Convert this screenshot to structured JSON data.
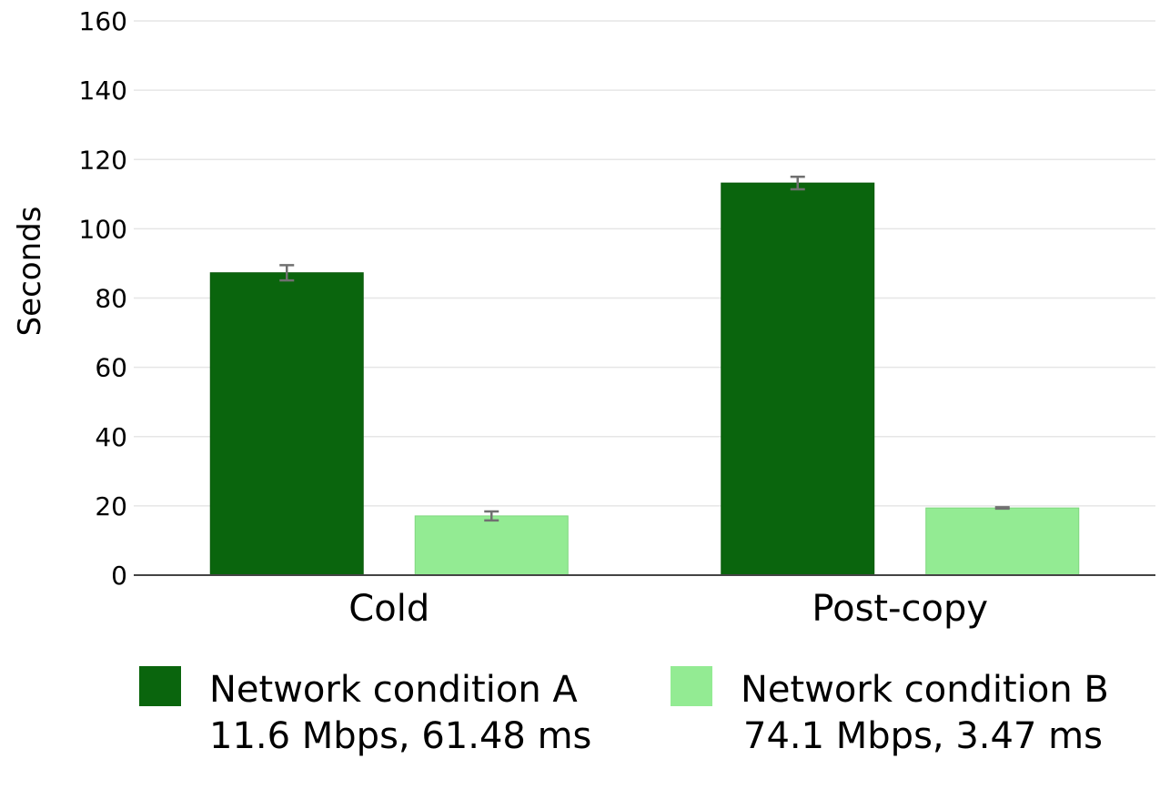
{
  "chart_data": {
    "type": "bar",
    "title": "",
    "xlabel": "",
    "ylabel": "Seconds",
    "ylim": [
      0,
      160
    ],
    "yticks": [
      0,
      20,
      40,
      60,
      80,
      100,
      120,
      140,
      160
    ],
    "grid": true,
    "legend_position": "bottom",
    "categories": [
      "Cold",
      "Post-copy"
    ],
    "series": [
      {
        "name": "Network condition A",
        "detail": "11.6 Mbps, 61.48 ms",
        "color": "#0a650d",
        "values": [
          87.3,
          113.2
        ],
        "errors": [
          2.2,
          1.8
        ]
      },
      {
        "name": "Network condition B",
        "detail": "74.1 Mbps, 3.47 ms",
        "color": "#93eb93",
        "values": [
          17.1,
          19.4
        ],
        "errors": [
          1.3,
          0.2
        ]
      }
    ]
  }
}
